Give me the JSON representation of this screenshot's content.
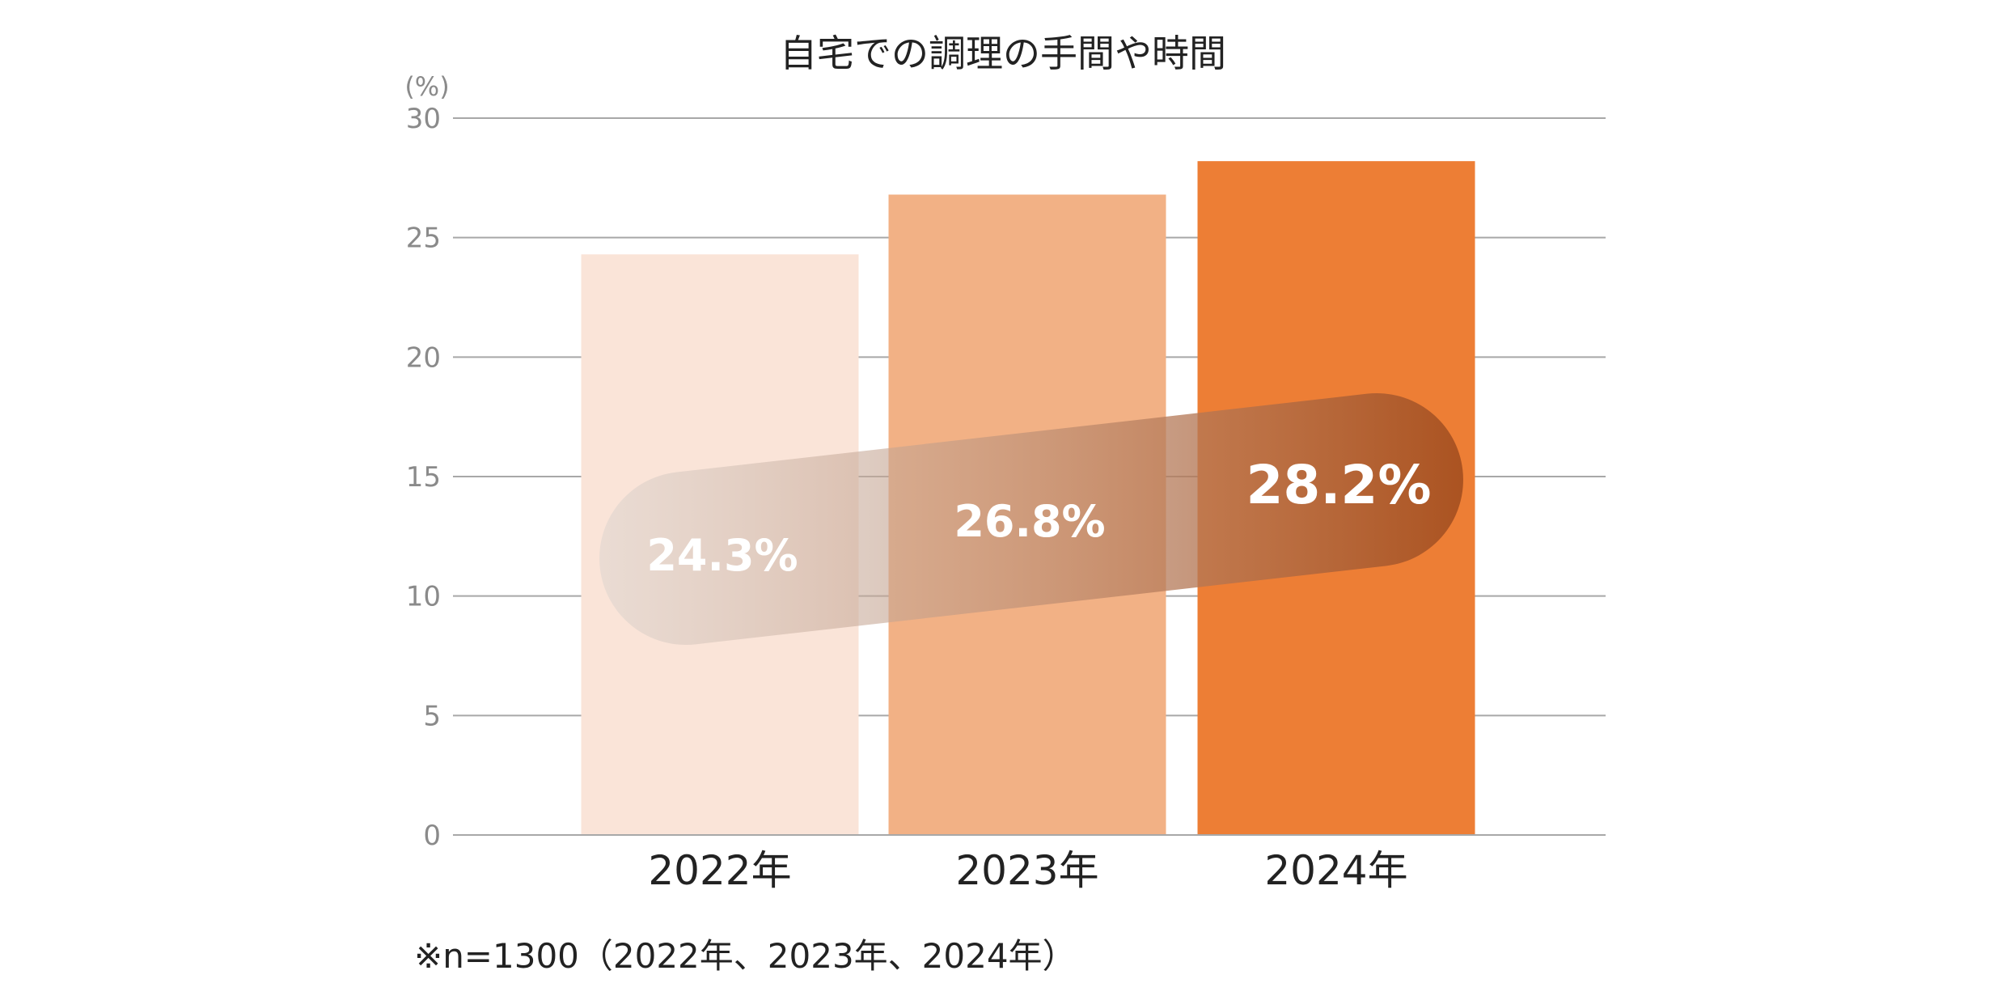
{
  "chart_data": {
    "type": "bar",
    "title": "自宅での調理の手間や時間",
    "ylabel": "(%)",
    "xlabel": "",
    "ylim": [
      0,
      30
    ],
    "yticks": [
      0,
      5,
      10,
      15,
      20,
      25,
      30
    ],
    "grid": true,
    "categories": [
      "2022年",
      "2023年",
      "2024年"
    ],
    "values": [
      24.3,
      26.8,
      28.2
    ],
    "data_labels": [
      "24.3%",
      "26.8%",
      "28.2%"
    ],
    "colors": [
      "#FAE4D8",
      "#F2B185",
      "#ED7E35"
    ],
    "trend_band_colors": [
      "#D6D1CD",
      "#A54F1F"
    ],
    "footnote": "※n=1300（2022年、2023年、2024年）"
  }
}
